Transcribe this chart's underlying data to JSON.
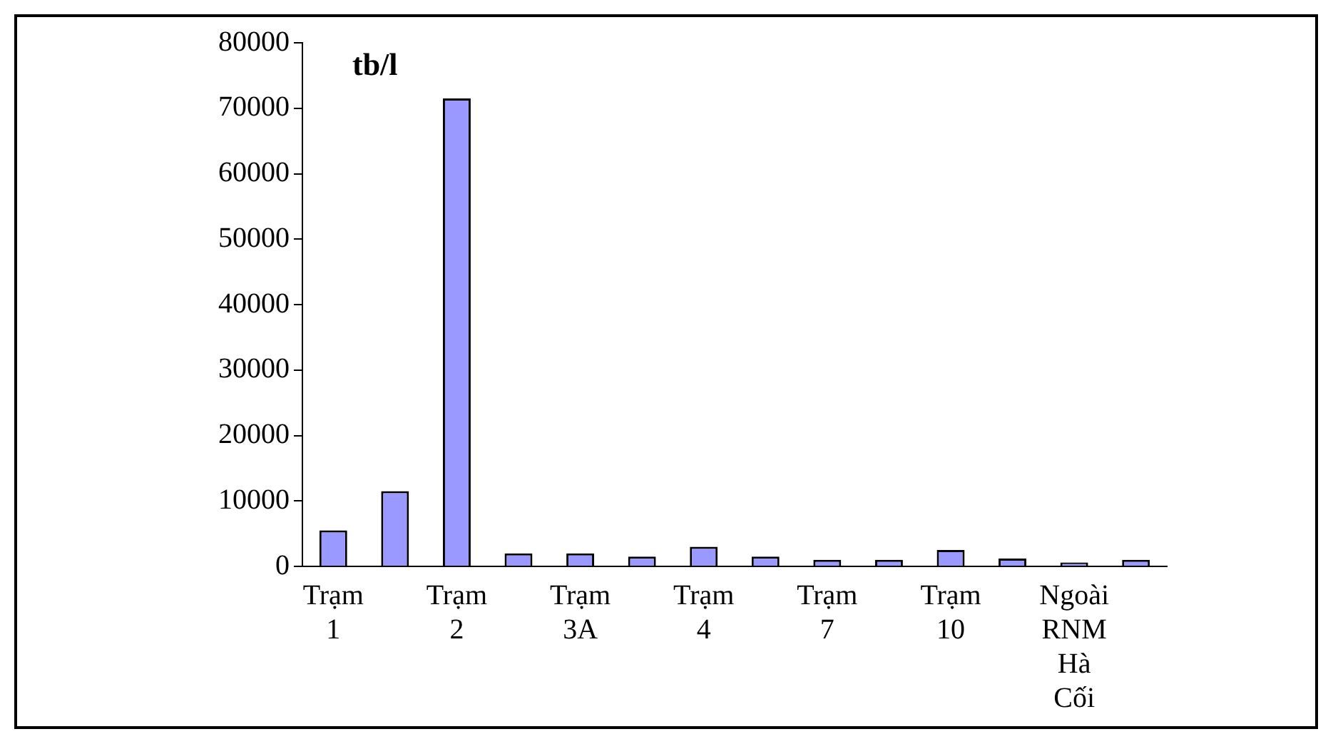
{
  "chart_data": {
    "type": "bar",
    "ylabel": "tb/l",
    "categories": [
      "Trạm 1",
      null,
      "Trạm 2",
      null,
      "Trạm 3A",
      null,
      "Trạm 4",
      null,
      "Trạm 7",
      null,
      "Trạm 10",
      null,
      "Ngoài RNM Hà Cối",
      null
    ],
    "values": [
      5500,
      11500,
      71500,
      2000,
      2000,
      1500,
      3000,
      1500,
      1000,
      1000,
      2500,
      1200,
      600,
      1000
    ],
    "color": "#9999ff",
    "ylim": [
      0,
      80000
    ],
    "yticks": [
      0,
      10000,
      20000,
      30000,
      40000,
      50000,
      60000,
      70000,
      80000
    ],
    "grid": false,
    "legend": false
  }
}
